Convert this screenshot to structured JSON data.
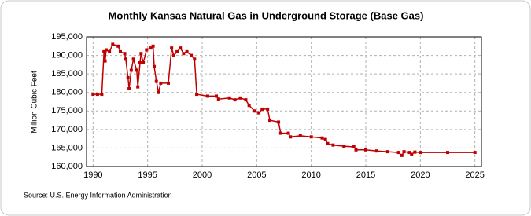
{
  "chart_data": {
    "type": "line",
    "title": "Monthly Kansas Natural Gas in Underground Storage (Base Gas)",
    "y_label": "Million Cubic Feet",
    "source": "Source: U.S. Energy Information Administration",
    "color": "#c00000",
    "grid": true,
    "xlim": [
      1989.4,
      2025.6
    ],
    "xticks": [
      1990,
      1995,
      2000,
      2005,
      2010,
      2015,
      2020,
      2025
    ],
    "ylim": [
      160000,
      195000
    ],
    "yticks": [
      {
        "value": 160000,
        "label": "160,000"
      },
      {
        "value": 165000,
        "label": "165,000"
      },
      {
        "value": 170000,
        "label": "170,000"
      },
      {
        "value": 175000,
        "label": "175,000"
      },
      {
        "value": 180000,
        "label": "180,000"
      },
      {
        "value": 185000,
        "label": "185,000"
      },
      {
        "value": 190000,
        "label": "190,000"
      },
      {
        "value": 195000,
        "label": "195,000"
      }
    ],
    "x": [
      1990.0,
      1990.4,
      1990.8,
      1991.0,
      1991.1,
      1991.2,
      1991.5,
      1991.8,
      1992.3,
      1992.5,
      1992.9,
      1993.0,
      1993.2,
      1993.3,
      1993.5,
      1993.7,
      1994.0,
      1994.1,
      1994.3,
      1994.4,
      1994.6,
      1994.9,
      1995.3,
      1995.5,
      1995.6,
      1995.8,
      1996.0,
      1996.2,
      1996.9,
      1997.2,
      1997.4,
      1997.7,
      1998.0,
      1998.3,
      1998.6,
      1999.0,
      1999.3,
      1999.5,
      2000.5,
      2001.3,
      2001.5,
      2002.5,
      2003.0,
      2003.5,
      2004.0,
      2004.3,
      2004.8,
      2005.2,
      2005.5,
      2006.0,
      2006.2,
      2007.0,
      2007.2,
      2007.9,
      2008.1,
      2009.0,
      2010.0,
      2011.0,
      2011.3,
      2011.5,
      2012.0,
      2013.0,
      2013.9,
      2014.1,
      2015.0,
      2016.0,
      2017.0,
      2018.0,
      2018.3,
      2018.5,
      2019.0,
      2019.2,
      2019.5,
      2020.0,
      2022.5,
      2025.0
    ],
    "values": [
      179500,
      179500,
      179500,
      191000,
      188500,
      191500,
      191000,
      193000,
      192500,
      191000,
      190500,
      189000,
      184000,
      181000,
      186000,
      189000,
      186000,
      181500,
      188000,
      190500,
      188000,
      191500,
      192000,
      192500,
      187000,
      183000,
      180000,
      182500,
      182500,
      192000,
      190000,
      191000,
      192000,
      190500,
      191000,
      190000,
      189000,
      179500,
      179000,
      179000,
      178200,
      178500,
      178000,
      178500,
      178000,
      176500,
      175000,
      174500,
      175500,
      175500,
      172500,
      172000,
      169000,
      169000,
      168000,
      168300,
      168000,
      167700,
      167300,
      166200,
      165800,
      165500,
      165300,
      164500,
      164500,
      164200,
      164000,
      163800,
      163000,
      164000,
      163800,
      163300,
      163900,
      163800,
      163800,
      163800
    ]
  }
}
